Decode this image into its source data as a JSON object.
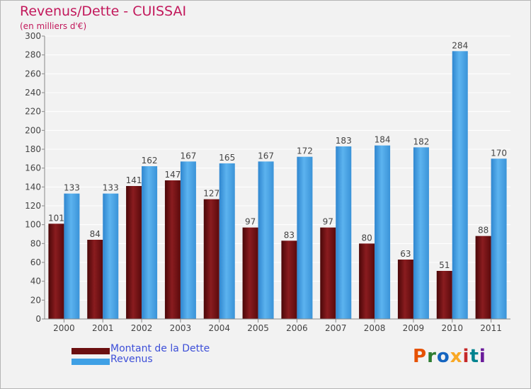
{
  "header": {
    "title": "Revenus/Dette - CUISSAI",
    "subtitle": "(en milliers d'€)"
  },
  "legend": {
    "items": [
      {
        "label": "Montant de la Dette",
        "color": "#6b0f10"
      },
      {
        "label": "Revenus",
        "color": "#3fa0e5"
      }
    ]
  },
  "logo": {
    "text": "Proxiti",
    "colors": [
      "#e65100",
      "#2e7d32",
      "#1565c0",
      "#f9a825",
      "#c62828",
      "#00838f",
      "#6a1b9a"
    ]
  },
  "chart_data": {
    "type": "bar",
    "title": "Revenus/Dette - CUISSAI",
    "subtitle": "(en milliers d'€)",
    "categories": [
      "2000",
      "2001",
      "2002",
      "2003",
      "2004",
      "2005",
      "2006",
      "2007",
      "2008",
      "2009",
      "2010",
      "2011"
    ],
    "series": [
      {
        "name": "Montant de la Dette",
        "color": "#6b0f10",
        "values": [
          101,
          84,
          141,
          147,
          127,
          97,
          83,
          97,
          80,
          63,
          51,
          88
        ]
      },
      {
        "name": "Revenus",
        "color": "#3fa0e5",
        "values": [
          133,
          133,
          162,
          167,
          165,
          167,
          172,
          183,
          184,
          182,
          284,
          170
        ]
      }
    ],
    "ylim": [
      0,
      300
    ],
    "yticks": [
      0,
      20,
      40,
      60,
      80,
      100,
      120,
      140,
      160,
      180,
      200,
      220,
      240,
      260,
      280,
      300
    ],
    "grid": true,
    "legend_position": "bottom-left"
  }
}
